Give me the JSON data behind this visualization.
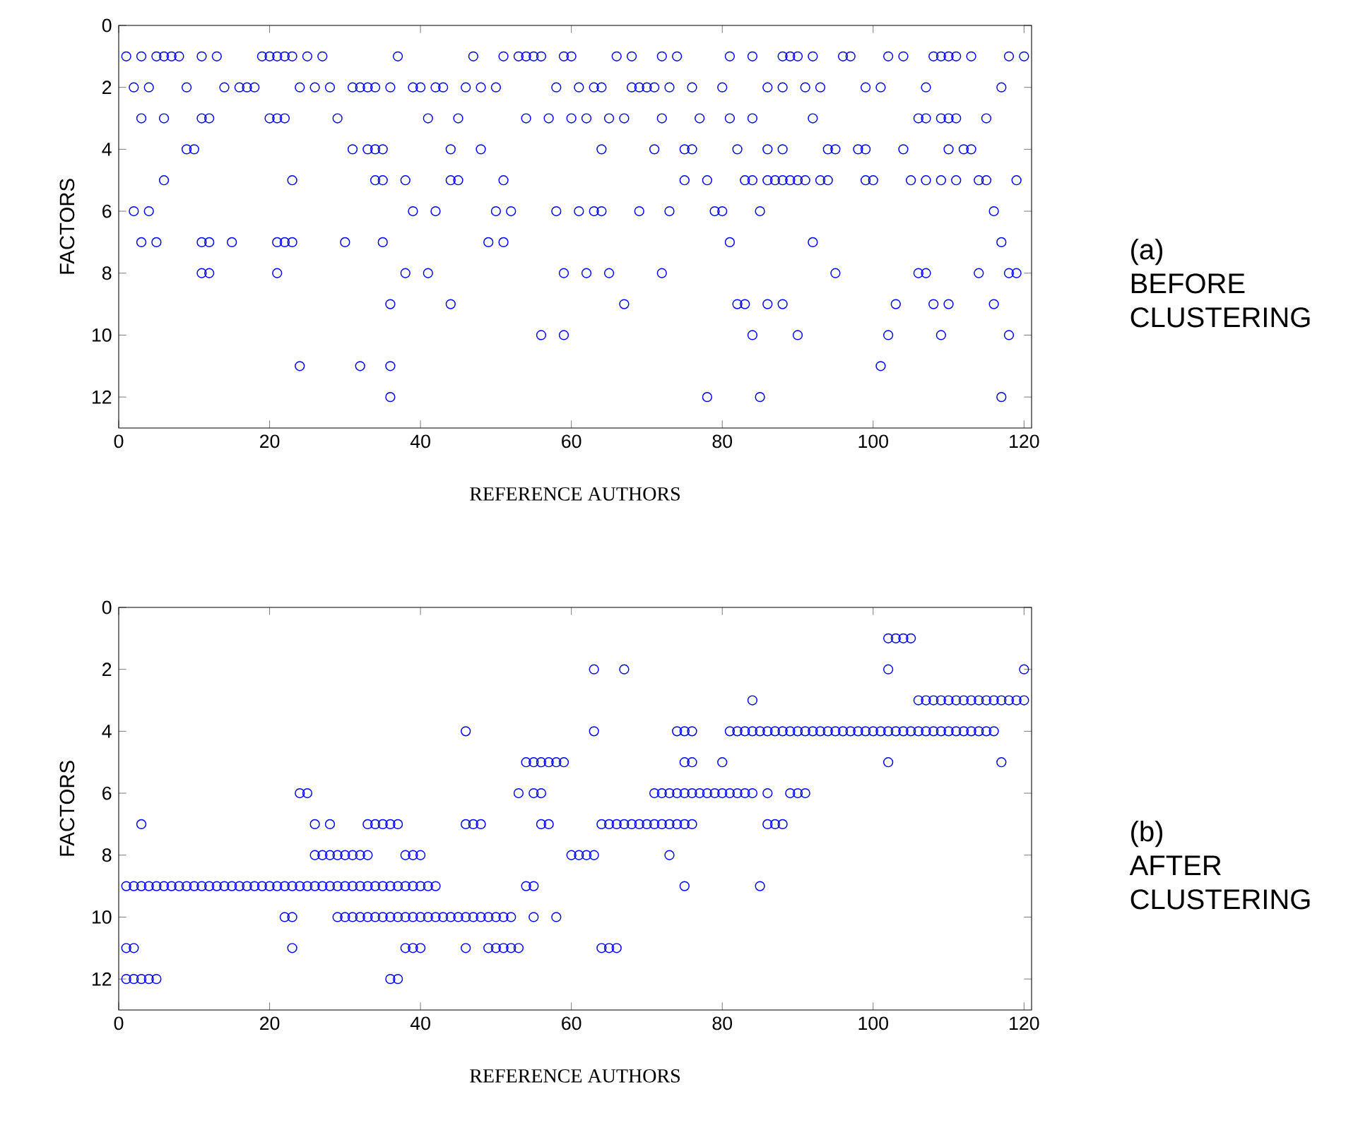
{
  "chart_data": [
    {
      "type": "scatter",
      "xlabel": "REFERENCE AUTHORS",
      "ylabel": "FACTORS",
      "annotations": [
        "(a)",
        "BEFORE CLUSTERING"
      ],
      "color": "#0000ff",
      "marker": "circle",
      "xlim": [
        0,
        121
      ],
      "ylim": [
        13,
        0
      ],
      "xticks": [
        0,
        20,
        40,
        60,
        80,
        100,
        120
      ],
      "yticks": [
        0,
        2,
        4,
        6,
        8,
        10,
        12
      ],
      "x": [
        1,
        3,
        5,
        6,
        7,
        8,
        11,
        13,
        19,
        20,
        21,
        22,
        23,
        25,
        27,
        37,
        47,
        51,
        53,
        54,
        55,
        56,
        59,
        60,
        66,
        68,
        72,
        74,
        81,
        84,
        88,
        89,
        90,
        92,
        96,
        97,
        102,
        104,
        108,
        109,
        110,
        111,
        113,
        118,
        120,
        2,
        4,
        9,
        14,
        16,
        17,
        18,
        24,
        26,
        28,
        31,
        32,
        33,
        34,
        36,
        39,
        40,
        42,
        43,
        46,
        48,
        50,
        58,
        61,
        63,
        64,
        68,
        69,
        70,
        71,
        73,
        76,
        80,
        86,
        88,
        91,
        93,
        99,
        101,
        107,
        117,
        3,
        6,
        11,
        12,
        20,
        21,
        22,
        29,
        41,
        45,
        54,
        57,
        60,
        62,
        65,
        67,
        72,
        77,
        81,
        84,
        92,
        106,
        107,
        109,
        110,
        111,
        115,
        9,
        10,
        31,
        33,
        34,
        35,
        44,
        48,
        64,
        71,
        75,
        76,
        82,
        86,
        88,
        94,
        95,
        98,
        99,
        104,
        110,
        112,
        113,
        6,
        23,
        34,
        35,
        38,
        44,
        45,
        51,
        75,
        78,
        83,
        84,
        86,
        87,
        88,
        89,
        90,
        91,
        93,
        94,
        99,
        100,
        105,
        107,
        109,
        111,
        114,
        115,
        119,
        2,
        4,
        39,
        42,
        50,
        52,
        58,
        61,
        63,
        64,
        69,
        73,
        79,
        80,
        85,
        116,
        3,
        5,
        11,
        12,
        15,
        21,
        22,
        23,
        30,
        35,
        49,
        51,
        81,
        92,
        117,
        11,
        12,
        21,
        38,
        41,
        59,
        62,
        65,
        72,
        95,
        106,
        107,
        114,
        118,
        119,
        36,
        44,
        67,
        82,
        83,
        86,
        88,
        103,
        108,
        110,
        116,
        56,
        59,
        84,
        90,
        102,
        109,
        118,
        24,
        32,
        36,
        101,
        36,
        78,
        85,
        117
      ],
      "values": [
        1,
        1,
        1,
        1,
        1,
        1,
        1,
        1,
        1,
        1,
        1,
        1,
        1,
        1,
        1,
        1,
        1,
        1,
        1,
        1,
        1,
        1,
        1,
        1,
        1,
        1,
        1,
        1,
        1,
        1,
        1,
        1,
        1,
        1,
        1,
        1,
        1,
        1,
        1,
        1,
        1,
        1,
        1,
        1,
        1,
        2,
        2,
        2,
        2,
        2,
        2,
        2,
        2,
        2,
        2,
        2,
        2,
        2,
        2,
        2,
        2,
        2,
        2,
        2,
        2,
        2,
        2,
        2,
        2,
        2,
        2,
        2,
        2,
        2,
        2,
        2,
        2,
        2,
        2,
        2,
        2,
        2,
        2,
        2,
        2,
        2,
        3,
        3,
        3,
        3,
        3,
        3,
        3,
        3,
        3,
        3,
        3,
        3,
        3,
        3,
        3,
        3,
        3,
        3,
        3,
        3,
        3,
        3,
        3,
        3,
        3,
        3,
        3,
        4,
        4,
        4,
        4,
        4,
        4,
        4,
        4,
        4,
        4,
        4,
        4,
        4,
        4,
        4,
        4,
        4,
        4,
        4,
        4,
        4,
        4,
        4,
        5,
        5,
        5,
        5,
        5,
        5,
        5,
        5,
        5,
        5,
        5,
        5,
        5,
        5,
        5,
        5,
        5,
        5,
        5,
        5,
        5,
        5,
        5,
        5,
        5,
        5,
        5,
        5,
        5,
        6,
        6,
        6,
        6,
        6,
        6,
        6,
        6,
        6,
        6,
        6,
        6,
        6,
        6,
        6,
        6,
        7,
        7,
        7,
        7,
        7,
        7,
        7,
        7,
        7,
        7,
        7,
        7,
        7,
        7,
        7,
        8,
        8,
        8,
        8,
        8,
        8,
        8,
        8,
        8,
        8,
        8,
        8,
        8,
        8,
        8,
        9,
        9,
        9,
        9,
        9,
        9,
        9,
        9,
        9,
        9,
        9,
        10,
        10,
        10,
        10,
        10,
        10,
        10,
        11,
        11,
        11,
        11,
        12,
        12,
        12,
        12
      ]
    },
    {
      "type": "scatter",
      "xlabel": "REFERENCE AUTHORS",
      "ylabel": "FACTORS",
      "annotations": [
        "(b)",
        "AFTER CLUSTERING"
      ],
      "color": "#0000ff",
      "marker": "circle",
      "xlim": [
        0,
        121
      ],
      "ylim": [
        13,
        0
      ],
      "xticks": [
        0,
        20,
        40,
        60,
        80,
        100,
        120
      ],
      "yticks": [
        0,
        2,
        4,
        6,
        8,
        10,
        12
      ],
      "x": [
        102,
        103,
        104,
        105,
        63,
        67,
        102,
        120,
        84,
        106,
        107,
        108,
        109,
        110,
        111,
        112,
        113,
        114,
        115,
        116,
        117,
        118,
        119,
        120,
        46,
        63,
        74,
        75,
        76,
        81,
        82,
        83,
        84,
        85,
        86,
        87,
        88,
        89,
        90,
        91,
        92,
        93,
        94,
        95,
        96,
        97,
        98,
        99,
        100,
        101,
        102,
        103,
        104,
        105,
        106,
        107,
        108,
        109,
        110,
        111,
        112,
        113,
        114,
        115,
        116,
        54,
        55,
        56,
        57,
        58,
        59,
        75,
        76,
        80,
        102,
        117,
        24,
        25,
        53,
        55,
        56,
        71,
        72,
        73,
        74,
        75,
        76,
        77,
        78,
        79,
        80,
        81,
        82,
        83,
        84,
        86,
        89,
        90,
        91,
        3,
        26,
        28,
        33,
        34,
        35,
        36,
        37,
        46,
        47,
        48,
        56,
        57,
        64,
        65,
        66,
        67,
        68,
        69,
        70,
        71,
        72,
        73,
        74,
        75,
        76,
        86,
        87,
        88,
        26,
        27,
        28,
        29,
        30,
        31,
        32,
        33,
        38,
        39,
        40,
        60,
        61,
        62,
        63,
        73,
        1,
        2,
        3,
        4,
        5,
        6,
        7,
        8,
        9,
        10,
        11,
        12,
        13,
        14,
        15,
        16,
        17,
        18,
        19,
        20,
        21,
        22,
        23,
        24,
        25,
        26,
        27,
        28,
        29,
        30,
        31,
        32,
        33,
        34,
        35,
        36,
        37,
        38,
        39,
        40,
        41,
        42,
        54,
        55,
        75,
        85,
        22,
        23,
        29,
        30,
        31,
        32,
        33,
        34,
        35,
        36,
        37,
        38,
        39,
        40,
        41,
        42,
        43,
        44,
        45,
        46,
        47,
        48,
        49,
        50,
        51,
        52,
        55,
        58,
        1,
        2,
        23,
        38,
        39,
        40,
        46,
        49,
        50,
        51,
        52,
        53,
        64,
        65,
        66,
        1,
        2,
        3,
        4,
        5,
        36,
        37
      ],
      "values": [
        1,
        1,
        1,
        1,
        2,
        2,
        2,
        2,
        3,
        3,
        3,
        3,
        3,
        3,
        3,
        3,
        3,
        3,
        3,
        3,
        3,
        3,
        3,
        3,
        4,
        4,
        4,
        4,
        4,
        4,
        4,
        4,
        4,
        4,
        4,
        4,
        4,
        4,
        4,
        4,
        4,
        4,
        4,
        4,
        4,
        4,
        4,
        4,
        4,
        4,
        4,
        4,
        4,
        4,
        4,
        4,
        4,
        4,
        4,
        4,
        4,
        4,
        4,
        4,
        4,
        5,
        5,
        5,
        5,
        5,
        5,
        5,
        5,
        5,
        5,
        5,
        6,
        6,
        6,
        6,
        6,
        6,
        6,
        6,
        6,
        6,
        6,
        6,
        6,
        6,
        6,
        6,
        6,
        6,
        6,
        6,
        6,
        6,
        6,
        7,
        7,
        7,
        7,
        7,
        7,
        7,
        7,
        7,
        7,
        7,
        7,
        7,
        7,
        7,
        7,
        7,
        7,
        7,
        7,
        7,
        7,
        7,
        7,
        7,
        7,
        7,
        7,
        7,
        8,
        8,
        8,
        8,
        8,
        8,
        8,
        8,
        8,
        8,
        8,
        8,
        8,
        8,
        8,
        8,
        9,
        9,
        9,
        9,
        9,
        9,
        9,
        9,
        9,
        9,
        9,
        9,
        9,
        9,
        9,
        9,
        9,
        9,
        9,
        9,
        9,
        9,
        9,
        9,
        9,
        9,
        9,
        9,
        9,
        9,
        9,
        9,
        9,
        9,
        9,
        9,
        9,
        9,
        9,
        9,
        9,
        9,
        9,
        9,
        9,
        9,
        10,
        10,
        10,
        10,
        10,
        10,
        10,
        10,
        10,
        10,
        10,
        10,
        10,
        10,
        10,
        10,
        10,
        10,
        10,
        10,
        10,
        10,
        10,
        10,
        10,
        10,
        10,
        10,
        11,
        11,
        11,
        11,
        11,
        11,
        11,
        11,
        11,
        11,
        11,
        11,
        11,
        11,
        11,
        12,
        12,
        12,
        12,
        12,
        12,
        12
      ]
    }
  ]
}
